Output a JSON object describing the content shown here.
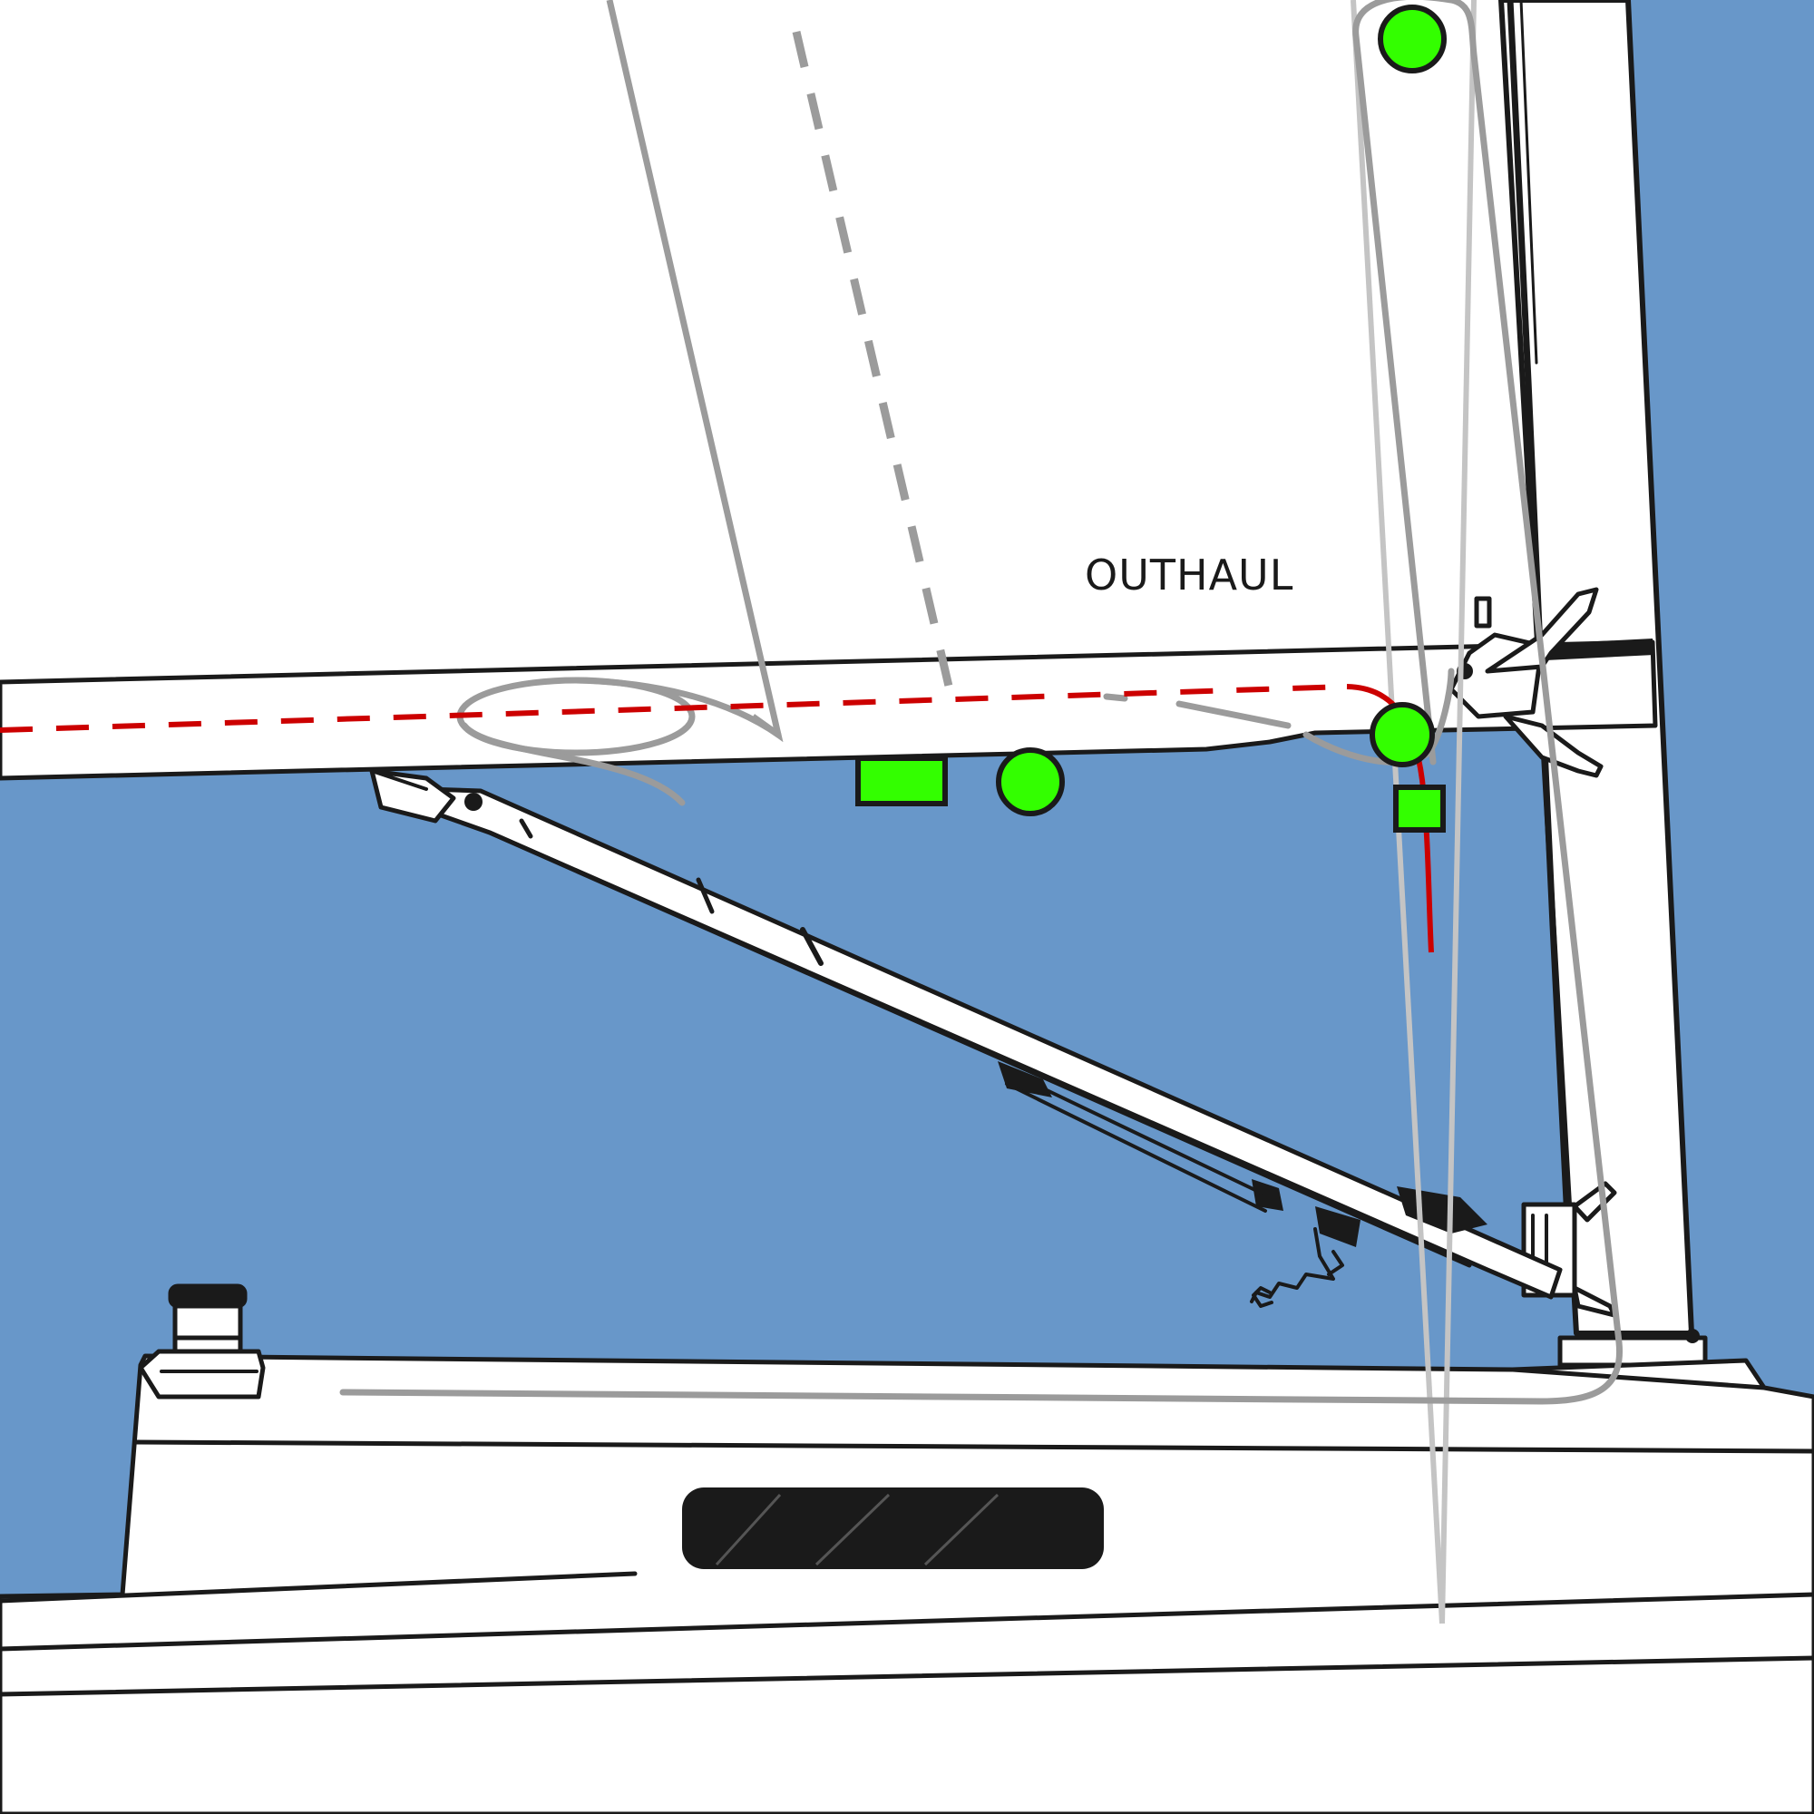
{
  "labels": {
    "outhaul": "OUTHAUL"
  },
  "colors": {
    "water": "#6897c9",
    "sail": "#ffffff",
    "ink": "#1a1a1a",
    "outhaul_line": "#cc0000",
    "marker": "#33ff00",
    "rope_gray": "#9b9b9b",
    "stay_light_gray": "#c4c4c4"
  },
  "markers": [
    {
      "shape": "circle",
      "name": "masthead-marker"
    },
    {
      "shape": "circle",
      "name": "boom-marker"
    },
    {
      "shape": "circle",
      "name": "gooseneck-marker"
    },
    {
      "shape": "rectangle",
      "name": "boom-rect-marker"
    },
    {
      "shape": "rectangle",
      "name": "mast-rect-marker"
    }
  ]
}
